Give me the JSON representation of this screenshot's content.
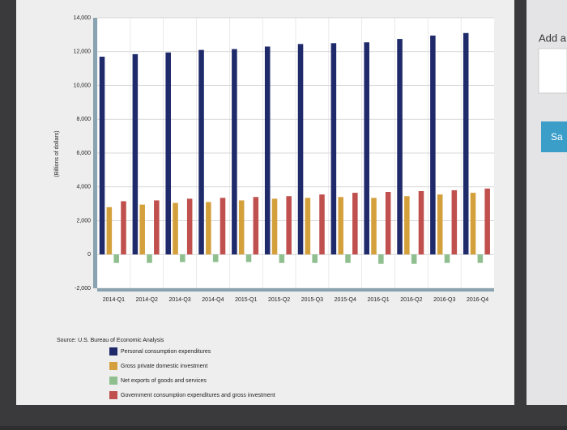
{
  "chart_data": {
    "type": "bar",
    "y_label": "(Billions of dollars)",
    "source": "Source: U.S. Bureau of Economic Analysis",
    "categories": [
      "2014-Q1",
      "2014-Q2",
      "2014-Q3",
      "2014-Q4",
      "2015-Q1",
      "2015-Q2",
      "2015-Q3",
      "2015-Q4",
      "2016-Q1",
      "2016-Q2",
      "2016-Q3",
      "2016-Q4"
    ],
    "series": [
      {
        "name": "Personal consumption expenditures",
        "color": "#1f2a6b",
        "values": [
          11700,
          11850,
          11950,
          12100,
          12150,
          12300,
          12450,
          12500,
          12550,
          12750,
          12950,
          13100
        ]
      },
      {
        "name": "Gross private domestic investment",
        "color": "#d4a03c",
        "values": [
          2800,
          2950,
          3050,
          3100,
          3200,
          3300,
          3350,
          3400,
          3350,
          3450,
          3550,
          3650
        ]
      },
      {
        "name": "Net exports of goods and services",
        "color": "#8fbf8f",
        "values": [
          -500,
          -500,
          -450,
          -450,
          -450,
          -500,
          -500,
          -500,
          -550,
          -550,
          -500,
          -500
        ]
      },
      {
        "name": "Government consumption expenditures and gross investment",
        "color": "#c0504d",
        "values": [
          3150,
          3200,
          3300,
          3350,
          3400,
          3450,
          3550,
          3650,
          3700,
          3750,
          3800,
          3900
        ]
      }
    ],
    "ylim": [
      -2000,
      14000
    ],
    "yticks": [
      {
        "value": -2000,
        "label": "-2,000"
      },
      0,
      {
        "value": 2000,
        "label": "2,000"
      },
      {
        "value": 4000,
        "label": "4,000"
      },
      {
        "value": 6000,
        "label": "6,000"
      },
      {
        "value": 8000,
        "label": "8,000"
      },
      {
        "value": 10000,
        "label": "10,000"
      },
      {
        "value": 12000,
        "label": "12,000"
      },
      {
        "value": 14000,
        "label": "14,000"
      }
    ],
    "grid": true
  },
  "side_panel": {
    "heading": "Add a",
    "button": "Sa"
  }
}
